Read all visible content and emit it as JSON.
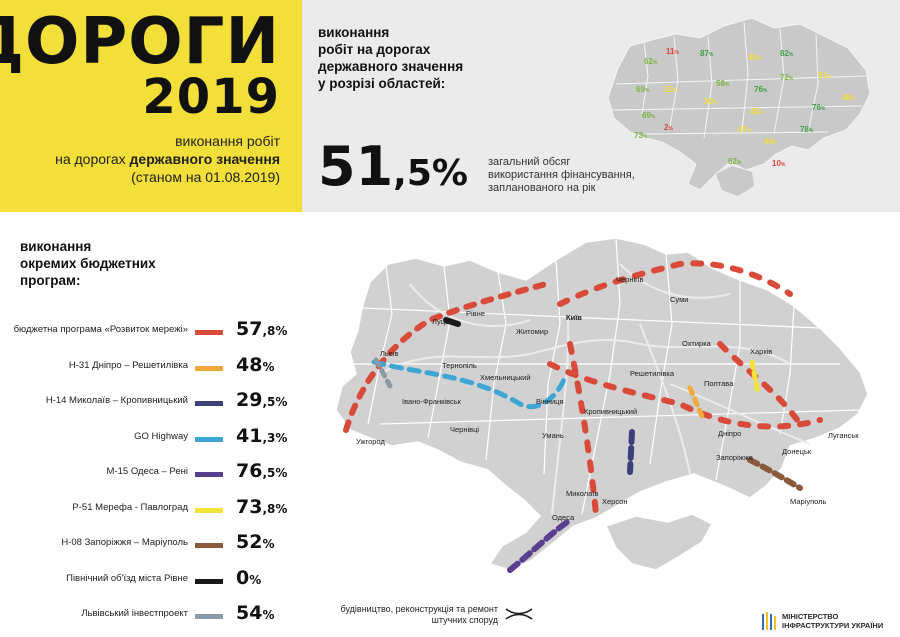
{
  "hero": {
    "title_line1": "ДОРОГИ",
    "title_line2": "2019",
    "subtitle_line1": "виконання робіт",
    "subtitle_line2_prefix": "на дорогах ",
    "subtitle_line2_bold": "державного значення",
    "subtitle_line3": "(станом на 01.08.2019)"
  },
  "summary": {
    "heading_lines": [
      "виконання",
      "робіт на дорогах",
      "державного значення",
      "у розрізі областей:"
    ],
    "big_value_int": "51",
    "big_value_dec": ",5%",
    "description_lines": [
      "загальний обсяг",
      "використання фінансування,",
      "запланованого на рік"
    ]
  },
  "region_values": [
    {
      "value": "62",
      "unit": "%",
      "color": "#7cb342"
    },
    {
      "value": "11",
      "unit": "%",
      "color": "#d84a3a"
    },
    {
      "value": "87",
      "unit": "%",
      "color": "#43a047"
    },
    {
      "value": "40",
      "unit": "%",
      "color": "#f2df3a"
    },
    {
      "value": "82",
      "unit": "%",
      "color": "#43a047"
    },
    {
      "value": "69",
      "unit": "%",
      "color": "#7cb342"
    },
    {
      "value": "53",
      "unit": "%",
      "color": "#f2df3a"
    },
    {
      "value": "58",
      "unit": "%",
      "color": "#7cb342"
    },
    {
      "value": "76",
      "unit": "%",
      "color": "#43a047"
    },
    {
      "value": "72",
      "unit": "%",
      "color": "#7cb342"
    },
    {
      "value": "51",
      "unit": "%",
      "color": "#f2df3a"
    },
    {
      "value": "30",
      "unit": "%",
      "color": "#f2df3a"
    },
    {
      "value": "76",
      "unit": "%",
      "color": "#43a047"
    },
    {
      "value": "48",
      "unit": "%",
      "color": "#f2df3a"
    },
    {
      "value": "45",
      "unit": "%",
      "color": "#f2df3a"
    },
    {
      "value": "69",
      "unit": "%",
      "color": "#7cb342"
    },
    {
      "value": "73",
      "unit": "%",
      "color": "#7cb342"
    },
    {
      "value": "2",
      "unit": "%",
      "color": "#d84a3a"
    },
    {
      "value": "47",
      "unit": "%",
      "color": "#f2df3a"
    },
    {
      "value": "78",
      "unit": "%",
      "color": "#43a047"
    },
    {
      "value": "44",
      "unit": "%",
      "color": "#f2df3a"
    },
    {
      "value": "62",
      "unit": "%",
      "color": "#7cb342"
    },
    {
      "value": "10",
      "unit": "%",
      "color": "#d84a3a"
    }
  ],
  "programs": {
    "heading_lines": [
      "виконання",
      "окремих бюджетних",
      "програм:"
    ],
    "items": [
      {
        "label": "бюджетна програма «Розвиток мережі»",
        "value_int": "57",
        "value_dec": ",8%",
        "color": "#d84a3a"
      },
      {
        "label": "Н-31 Дніпро – Решетилівка",
        "value_int": "48",
        "value_dec": "%",
        "color": "#f0a93b"
      },
      {
        "label": "Н-14 Миколаїв – Кропивницький",
        "value_int": "29",
        "value_dec": ",5%",
        "color": "#3b3f7a"
      },
      {
        "label": "GO Highway",
        "value_int": "41",
        "value_dec": ",3%",
        "color": "#3ea6d4"
      },
      {
        "label": "М-15 Одеса – Рені",
        "value_int": "76",
        "value_dec": ",5%",
        "color": "#5b3f8f"
      },
      {
        "label": "Р-51  Мерефа - Павлоград",
        "value_int": "73",
        "value_dec": ",8%",
        "color": "#f2e33a"
      },
      {
        "label": "Н-08 Запоріжжя – Маріуполь",
        "value_int": "52",
        "value_dec": "%",
        "color": "#8a5a3c"
      },
      {
        "label": "Північний об'їзд міста Рівне",
        "value_int": "0",
        "value_dec": "%",
        "color": "#1a1a1a"
      },
      {
        "label": "Львівський інвестпроект",
        "value_int": "54",
        "value_dec": "%",
        "color": "#8a9aa6"
      }
    ]
  },
  "map_cities": [
    "Київ",
    "Чернігів",
    "Суми",
    "Луцьк",
    "Рівне",
    "Житомир",
    "Охтирка",
    "Харків",
    "Львів",
    "Тернопіль",
    "Хмельницький",
    "Вінниця",
    "Решетилівка",
    "Полтава",
    "Івано-Франківськ",
    "Умань",
    "Кропивницький",
    "Ужгород",
    "Чернівці",
    "Дніпро",
    "Луганськ",
    "Запоріжжя",
    "Донецьк",
    "Миколаїв",
    "Херсон",
    "Одеса",
    "Маріуполь"
  ],
  "structure_legend": [
    "будівництво, реконструкція та ремонт",
    "штучних споруд"
  ],
  "ministry": [
    "Міністерство",
    "інфраструктури України"
  ]
}
